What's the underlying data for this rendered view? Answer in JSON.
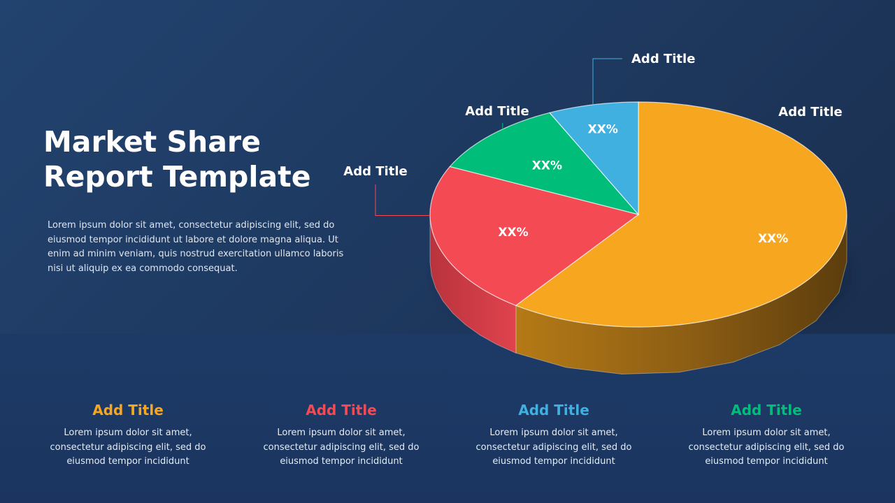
{
  "slide": {
    "title_line1": "Market Share",
    "title_line2": "Report Template",
    "description": "Lorem ipsum dolor sit amet, consectetur adipiscing elit, sed do eiusmod tempor incididunt ut labore et dolore magna aliqua. Ut enim ad minim veniam, quis nostrud exercitation ullamco laboris nisi ut aliquip ex ea commodo consequat."
  },
  "chart_data": {
    "type": "pie",
    "style": "3d",
    "slices": [
      {
        "label": "Add Title",
        "value_label": "XX%",
        "value": 60,
        "color": "#f6a61f"
      },
      {
        "label": "Add Title",
        "value_label": "XX%",
        "value": 22,
        "color": "#f44a54"
      },
      {
        "label": "Add Title",
        "value_label": "XX%",
        "value": 11,
        "color": "#00be7a"
      },
      {
        "label": "Add Title",
        "value_label": "XX%",
        "value": 7,
        "color": "#3fb0df"
      }
    ]
  },
  "cards": [
    {
      "title": "Add Title",
      "color": "#f6a61f",
      "text": "Lorem ipsum dolor sit amet, consectetur adipiscing elit, sed do eiusmod tempor incididunt"
    },
    {
      "title": "Add Title",
      "color": "#f44a54",
      "text": "Lorem ipsum dolor sit amet, consectetur adipiscing elit, sed do eiusmod tempor incididunt"
    },
    {
      "title": "Add Title",
      "color": "#3fb0df",
      "text": "Lorem ipsum dolor sit amet, consectetur adipiscing elit, sed do eiusmod tempor incididunt"
    },
    {
      "title": "Add Title",
      "color": "#00be7a",
      "text": "Lorem ipsum dolor sit amet, consectetur adipiscing elit, sed do eiusmod tempor incididunt"
    }
  ]
}
